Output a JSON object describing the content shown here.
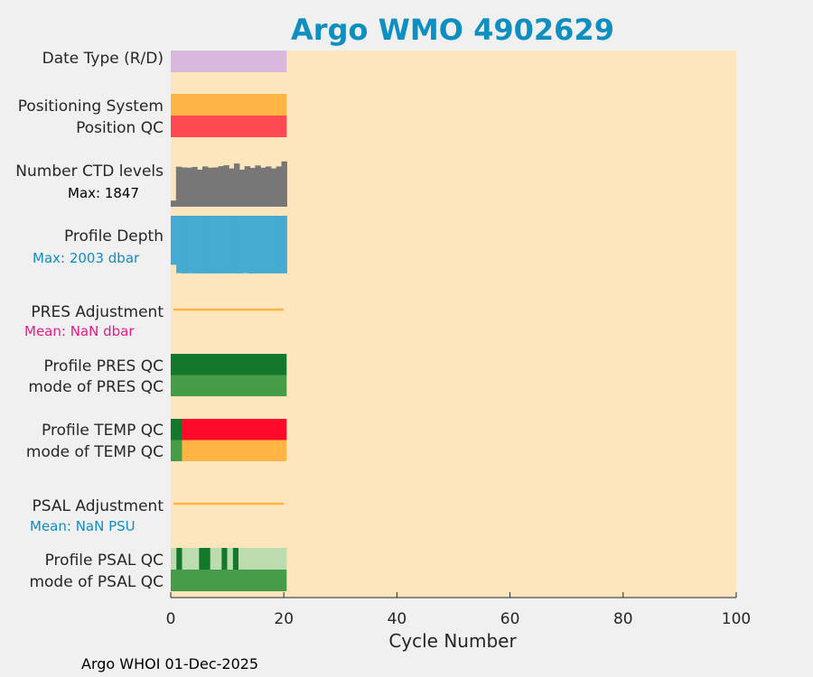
{
  "chart_data": {
    "type": "bar",
    "title": "Argo WMO 4902629",
    "xlabel": "Cycle Number",
    "xlim": [
      0,
      100
    ],
    "xticks": [
      0,
      20,
      40,
      60,
      80,
      100
    ],
    "num_cycles": 20,
    "footer": "Argo WHOI 01-Dec-2025",
    "rows": [
      {
        "id": "date-type",
        "labels": [
          "Date Type (R/D)"
        ],
        "type": "strip",
        "colors": [
          "#d8b8dc"
        ]
      },
      {
        "id": "positioning",
        "labels": [
          "Positioning System",
          "Position QC"
        ],
        "type": "dual-strip",
        "colors_top": [
          "#ffb444"
        ],
        "colors_bottom": [
          "#ff4a52"
        ]
      },
      {
        "id": "ctd-levels",
        "labels": [
          "Number CTD levels"
        ],
        "annotation": "Max: 1847",
        "type": "histogram",
        "color": "#777777",
        "values": [
          250,
          1630,
          1600,
          1590,
          1620,
          1510,
          1640,
          1590,
          1600,
          1650,
          1690,
          1560,
          1760,
          1510,
          1650,
          1580,
          1680,
          1590,
          1640,
          1560,
          1640,
          1847
        ]
      },
      {
        "id": "profile-depth",
        "labels": [
          "Profile Depth"
        ],
        "annotation": "Max: 2003 dbar",
        "type": "depth",
        "color": "#45abd0",
        "values": [
          1700,
          1990,
          2000,
          1995,
          2000,
          2000,
          1998,
          2000,
          2000,
          2000,
          2000,
          2000,
          2000,
          1990,
          2003,
          2000,
          2000,
          2000,
          2000,
          2000,
          2000
        ]
      },
      {
        "id": "pres-adjustment",
        "labels": [
          "PRES Adjustment"
        ],
        "annotation": "Mean:  NaN dbar",
        "type": "line",
        "color": "#ffb444"
      },
      {
        "id": "pres-qc",
        "labels": [
          "Profile PRES QC",
          "mode of PRES QC"
        ],
        "type": "dual-strip",
        "colors_top": [
          "#13782c"
        ],
        "colors_bottom": [
          "#469b46"
        ]
      },
      {
        "id": "temp-qc",
        "labels": [
          "Profile TEMP QC",
          "mode of TEMP QC"
        ],
        "type": "dual-strip",
        "top_segments": [
          {
            "from": 0,
            "to": 2,
            "color": "#13782c"
          },
          {
            "from": 2,
            "to": 20.5,
            "color": "#ff0a2a"
          }
        ],
        "bottom_segments": [
          {
            "from": 0,
            "to": 2,
            "color": "#469b46"
          },
          {
            "from": 2,
            "to": 20.5,
            "color": "#ffb444"
          }
        ]
      },
      {
        "id": "psal-adjustment",
        "labels": [
          "PSAL Adjustment"
        ],
        "annotation": "Mean:  NaN PSU",
        "type": "line",
        "color": "#ffb444"
      },
      {
        "id": "psal-qc",
        "labels": [
          "Profile PSAL QC",
          "mode of PSAL QC"
        ],
        "type": "dual-strip",
        "top_segments": [
          {
            "from": 0,
            "to": 1,
            "color": "#bcdcb0"
          },
          {
            "from": 1,
            "to": 2,
            "color": "#13782c"
          },
          {
            "from": 2,
            "to": 5,
            "color": "#bcdcb0"
          },
          {
            "from": 5,
            "to": 7,
            "color": "#13782c"
          },
          {
            "from": 7,
            "to": 9,
            "color": "#bcdcb0"
          },
          {
            "from": 9,
            "to": 10,
            "color": "#13782c"
          },
          {
            "from": 10,
            "to": 11,
            "color": "#bcdcb0"
          },
          {
            "from": 11,
            "to": 12,
            "color": "#13782c"
          },
          {
            "from": 12,
            "to": 20.5,
            "color": "#bcdcb0"
          }
        ],
        "bottom_segments": [
          {
            "from": 0,
            "to": 20.5,
            "color": "#469b46"
          }
        ]
      }
    ]
  },
  "colors": {
    "plot_background": "#fde6bd",
    "figure_background": "#f0f0f0",
    "title": "#0e8fc0",
    "annotation_dark": "#000000",
    "annotation_blue": "#0e8fc0",
    "annotation_pink": "#e81a8a"
  }
}
